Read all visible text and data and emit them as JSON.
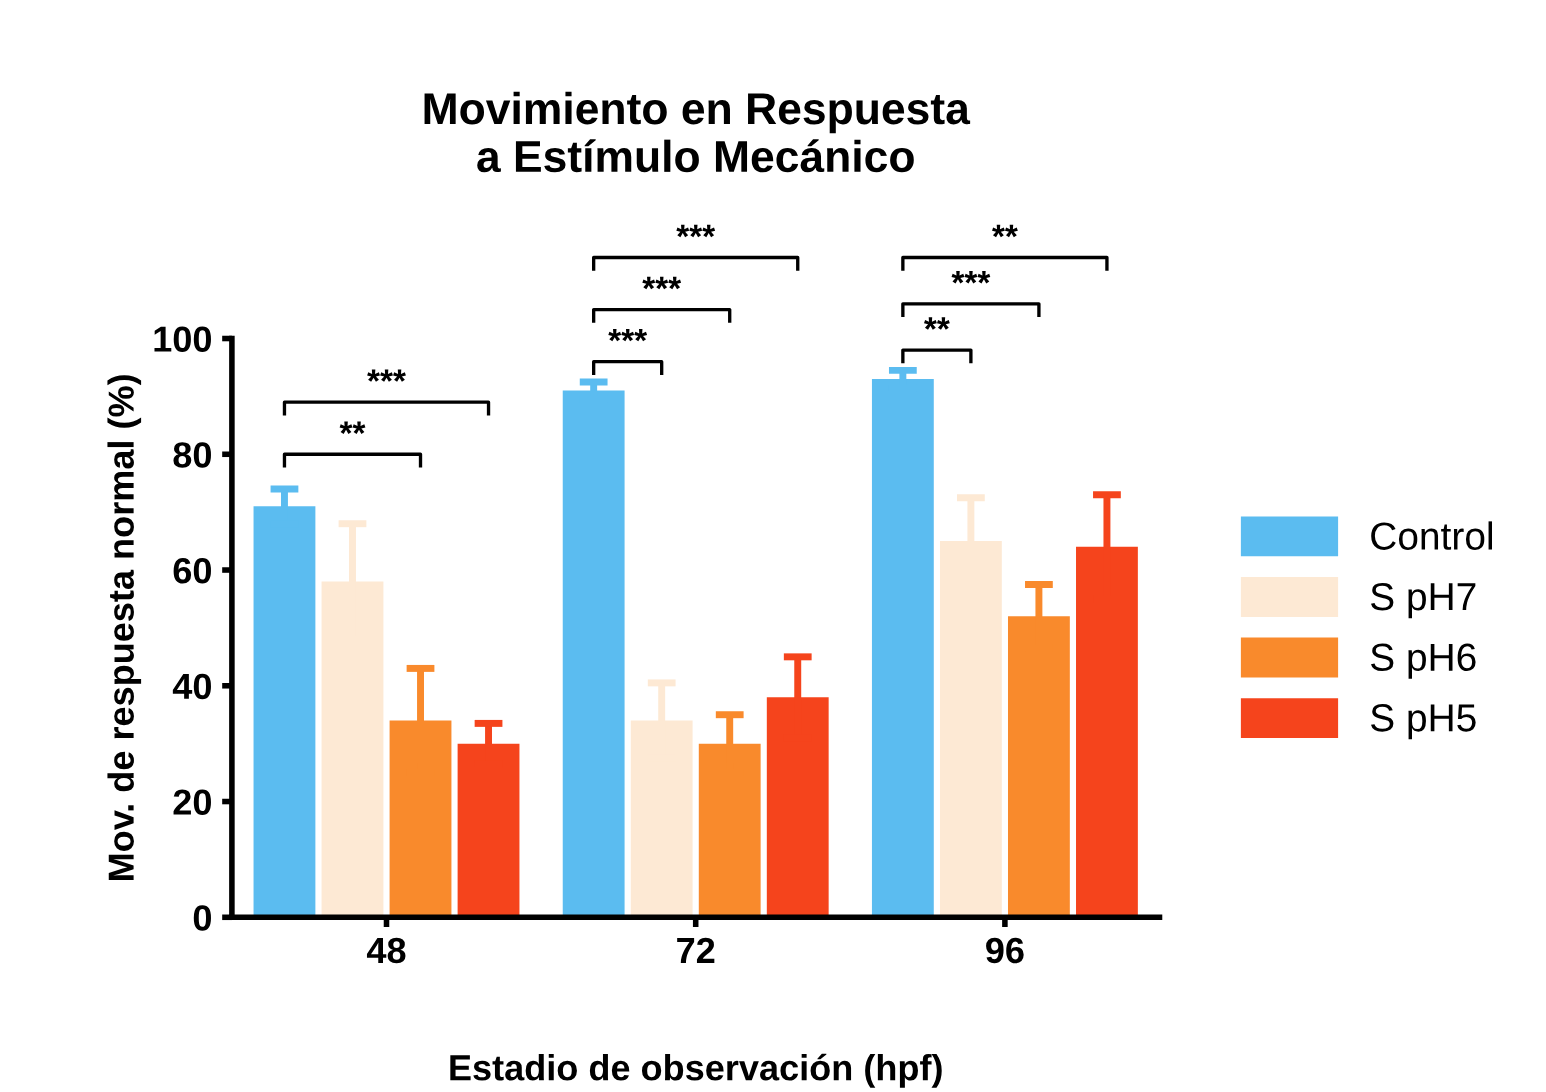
{
  "chart_data": {
    "type": "bar",
    "title": "Movimiento en Respuesta\na Estímulo Mecánico",
    "xlabel": "Estadio de observación (hpf)",
    "ylabel": "Mov. de respuesta normal (%)",
    "categories": [
      "48",
      "72",
      "96"
    ],
    "series": [
      {
        "name": "Control",
        "color": "#5bbcf0",
        "values": [
          71,
          91,
          93
        ],
        "errors": [
          3,
          1.5,
          1.5
        ]
      },
      {
        "name": "S pH7",
        "color": "#fde9d4",
        "values": [
          58,
          34,
          65
        ],
        "errors": [
          10,
          6.5,
          7.5
        ]
      },
      {
        "name": "S pH6",
        "color": "#f98a2c",
        "values": [
          34,
          30,
          52
        ],
        "errors": [
          9,
          5,
          5.5
        ]
      },
      {
        "name": "S pH5",
        "color": "#f5441c",
        "values": [
          30,
          38,
          64
        ],
        "errors": [
          3.5,
          7,
          9
        ]
      }
    ],
    "ylim": [
      0,
      100
    ],
    "yticks": [
      0,
      20,
      40,
      60,
      80,
      100
    ],
    "grid": false,
    "legend": "right",
    "annotations": [
      "**",
      "***",
      "***",
      "***",
      "***",
      "**",
      "***",
      "**"
    ]
  }
}
